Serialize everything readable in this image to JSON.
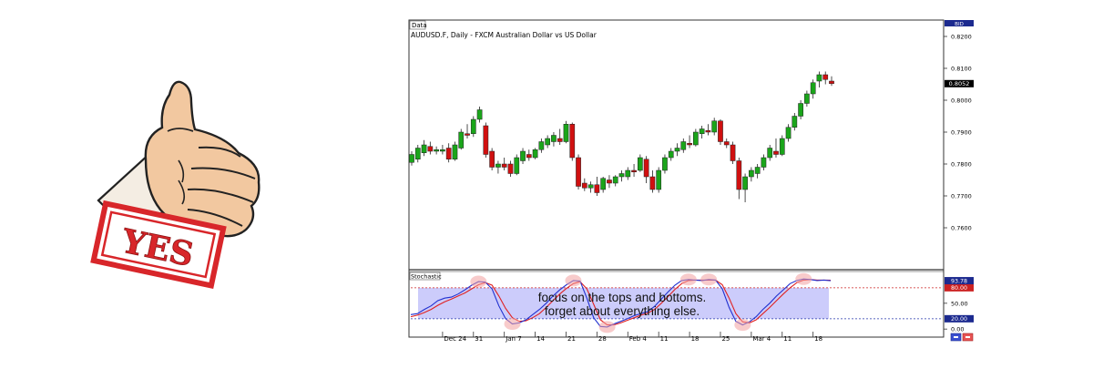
{
  "thumb": {
    "stamp_text": "YES"
  },
  "chart": {
    "panel_label": "Data",
    "title": "AUDUSD.F, Daily - FXCM Australian Dollar vs US Dollar",
    "price_scale_tag": "BID",
    "last_price_label": "0.8052",
    "stoch_panel_label": "Stochastic",
    "stoch_value_label": "93.78",
    "stoch_upper_label": "80.00",
    "stoch_lower_label": "20.00",
    "annotation_line1": "focus on the tops and bottoms.",
    "annotation_line2": "forget about everything else.",
    "nav_icons": "scroll-buttons"
  },
  "chart_data": {
    "type": "candlestick",
    "title": "AUDUSD.F, Daily - FXCM Australian Dollar vs US Dollar",
    "xlabel": "",
    "ylabel": "",
    "ylim": [
      0.748,
      0.824
    ],
    "price_ticks": [
      "0.8200",
      "0.8100",
      "0.8000",
      "0.7900",
      "0.7800",
      "0.7700",
      "0.7600"
    ],
    "price_tick_values": [
      0.82,
      0.81,
      0.8,
      0.79,
      0.78,
      0.77,
      0.76
    ],
    "last_price": 0.8052,
    "x_labels": [
      "Dec 24",
      "31",
      "Jan 7",
      "14",
      "21",
      "28",
      "Feb 4",
      "11",
      "18",
      "25",
      "Mar 4",
      "11",
      "18"
    ],
    "x_label_index": [
      5,
      10,
      15,
      20,
      25,
      30,
      35,
      40,
      45,
      50,
      55,
      60,
      65
    ],
    "candles": [
      [
        0.7805,
        0.784,
        0.7795,
        0.783
      ],
      [
        0.7815,
        0.786,
        0.7805,
        0.785
      ],
      [
        0.7835,
        0.7875,
        0.7825,
        0.786
      ],
      [
        0.7855,
        0.787,
        0.783,
        0.784
      ],
      [
        0.784,
        0.7855,
        0.783,
        0.7845
      ],
      [
        0.784,
        0.786,
        0.783,
        0.7845
      ],
      [
        0.785,
        0.7865,
        0.7805,
        0.7815
      ],
      [
        0.7815,
        0.787,
        0.781,
        0.786
      ],
      [
        0.785,
        0.791,
        0.7845,
        0.79
      ],
      [
        0.7895,
        0.7925,
        0.788,
        0.789
      ],
      [
        0.7895,
        0.795,
        0.7885,
        0.794
      ],
      [
        0.794,
        0.798,
        0.793,
        0.797
      ],
      [
        0.792,
        0.793,
        0.782,
        0.783
      ],
      [
        0.784,
        0.785,
        0.778,
        0.779
      ],
      [
        0.779,
        0.781,
        0.777,
        0.78
      ],
      [
        0.78,
        0.782,
        0.778,
        0.779
      ],
      [
        0.78,
        0.781,
        0.776,
        0.777
      ],
      [
        0.777,
        0.783,
        0.7765,
        0.782
      ],
      [
        0.781,
        0.785,
        0.78,
        0.784
      ],
      [
        0.783,
        0.7845,
        0.781,
        0.782
      ],
      [
        0.782,
        0.785,
        0.7815,
        0.7845
      ],
      [
        0.7845,
        0.788,
        0.7835,
        0.787
      ],
      [
        0.786,
        0.789,
        0.785,
        0.788
      ],
      [
        0.787,
        0.79,
        0.7855,
        0.789
      ],
      [
        0.788,
        0.791,
        0.786,
        0.787
      ],
      [
        0.787,
        0.7935,
        0.7865,
        0.7925
      ],
      [
        0.7925,
        0.793,
        0.781,
        0.782
      ],
      [
        0.782,
        0.783,
        0.772,
        0.773
      ],
      [
        0.774,
        0.7755,
        0.7715,
        0.7725
      ],
      [
        0.7725,
        0.7745,
        0.771,
        0.7735
      ],
      [
        0.7735,
        0.776,
        0.77,
        0.771
      ],
      [
        0.772,
        0.776,
        0.771,
        0.7755
      ],
      [
        0.775,
        0.7765,
        0.7725,
        0.774
      ],
      [
        0.774,
        0.7765,
        0.773,
        0.776
      ],
      [
        0.776,
        0.778,
        0.7745,
        0.777
      ],
      [
        0.776,
        0.779,
        0.775,
        0.778
      ],
      [
        0.778,
        0.78,
        0.776,
        0.7775
      ],
      [
        0.778,
        0.783,
        0.7775,
        0.782
      ],
      [
        0.7815,
        0.7825,
        0.774,
        0.776
      ],
      [
        0.776,
        0.778,
        0.771,
        0.772
      ],
      [
        0.772,
        0.779,
        0.771,
        0.778
      ],
      [
        0.778,
        0.783,
        0.777,
        0.782
      ],
      [
        0.782,
        0.785,
        0.781,
        0.784
      ],
      [
        0.784,
        0.7865,
        0.7825,
        0.785
      ],
      [
        0.7845,
        0.788,
        0.7835,
        0.787
      ],
      [
        0.7865,
        0.789,
        0.785,
        0.786
      ],
      [
        0.786,
        0.791,
        0.7855,
        0.79
      ],
      [
        0.7895,
        0.792,
        0.788,
        0.791
      ],
      [
        0.7905,
        0.7925,
        0.789,
        0.79
      ],
      [
        0.79,
        0.7945,
        0.789,
        0.7935
      ],
      [
        0.7935,
        0.794,
        0.786,
        0.787
      ],
      [
        0.787,
        0.788,
        0.785,
        0.786
      ],
      [
        0.786,
        0.787,
        0.78,
        0.781
      ],
      [
        0.781,
        0.782,
        0.769,
        0.772
      ],
      [
        0.772,
        0.777,
        0.768,
        0.776
      ],
      [
        0.776,
        0.779,
        0.7745,
        0.778
      ],
      [
        0.777,
        0.78,
        0.7755,
        0.779
      ],
      [
        0.779,
        0.783,
        0.778,
        0.782
      ],
      [
        0.782,
        0.786,
        0.781,
        0.785
      ],
      [
        0.784,
        0.788,
        0.782,
        0.783
      ],
      [
        0.783,
        0.789,
        0.7825,
        0.788
      ],
      [
        0.788,
        0.7925,
        0.787,
        0.7915
      ],
      [
        0.7915,
        0.796,
        0.7905,
        0.795
      ],
      [
        0.795,
        0.8,
        0.794,
        0.799
      ],
      [
        0.799,
        0.803,
        0.798,
        0.802
      ],
      [
        0.802,
        0.8065,
        0.8005,
        0.8055
      ],
      [
        0.806,
        0.809,
        0.804,
        0.808
      ],
      [
        0.808,
        0.809,
        0.805,
        0.8065
      ],
      [
        0.806,
        0.8075,
        0.8045,
        0.8052
      ]
    ],
    "stochastic": {
      "ylim": [
        -5,
        108
      ],
      "ticks": [
        "0.00",
        "20.00",
        "50.00",
        "80.00",
        "93.78"
      ],
      "tick_values": [
        0,
        20,
        50,
        80,
        93.78
      ],
      "overbought": 80,
      "oversold": 20,
      "k_line": [
        28,
        30,
        38,
        45,
        55,
        60,
        62,
        68,
        76,
        85,
        92,
        91,
        78,
        45,
        20,
        10,
        12,
        18,
        28,
        38,
        50,
        64,
        76,
        86,
        94,
        93,
        60,
        22,
        5,
        4,
        10,
        15,
        20,
        26,
        30,
        34,
        44,
        58,
        72,
        85,
        94,
        96,
        95,
        94,
        96,
        95,
        78,
        42,
        15,
        8,
        14,
        24,
        38,
        50,
        64,
        76,
        88,
        94,
        97,
        96,
        94,
        95,
        93.78
      ],
      "d_line": [
        24,
        27,
        32,
        38,
        46,
        53,
        58,
        64,
        70,
        78,
        86,
        90,
        85,
        64,
        40,
        22,
        15,
        16,
        22,
        30,
        42,
        55,
        68,
        79,
        88,
        92,
        78,
        48,
        18,
        8,
        8,
        12,
        17,
        22,
        27,
        31,
        38,
        50,
        63,
        77,
        88,
        94,
        95,
        95,
        95,
        95,
        86,
        60,
        30,
        14,
        12,
        18,
        30,
        42,
        55,
        68,
        80,
        90,
        95,
        96,
        95,
        95,
        94.5
      ]
    }
  }
}
